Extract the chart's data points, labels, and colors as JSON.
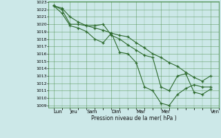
{
  "xlabel": "Pression niveau de la mer( hPa )",
  "ylim": [
    1009,
    1023
  ],
  "yticks": [
    1009,
    1010,
    1011,
    1012,
    1013,
    1014,
    1015,
    1016,
    1017,
    1018,
    1019,
    1020,
    1021,
    1022,
    1023
  ],
  "xtick_labels": [
    "Lun",
    "Jeu",
    "Sam",
    "Dim",
    "Mar",
    "Mer",
    "Ven"
  ],
  "xtick_positions": [
    0,
    1,
    2,
    3.5,
    5,
    6.5,
    9.5
  ],
  "background_color": "#cce8e8",
  "grid_color": "#4d8f4d",
  "line_color": "#2d6a2d",
  "series": [
    {
      "x": [
        0,
        0.5,
        1,
        1.5,
        2,
        2.5,
        3,
        3.5,
        4,
        4.5,
        5,
        5.5,
        6,
        6.5,
        7,
        7.5,
        8,
        8.5,
        9,
        9.5
      ],
      "y": [
        1022.5,
        1022.2,
        1021.0,
        1020.3,
        1019.8,
        1019.5,
        1019.2,
        1018.8,
        1018.5,
        1018.3,
        1017.5,
        1016.8,
        1016.0,
        1015.5,
        1014.8,
        1014.3,
        1013.5,
        1012.8,
        1012.3,
        1013.0
      ]
    },
    {
      "x": [
        0,
        0.5,
        1,
        1.5,
        2,
        2.5,
        3,
        3.5,
        4,
        4.5,
        5,
        5.5,
        6,
        6.5,
        7,
        7.5,
        8,
        8.5,
        9,
        9.5
      ],
      "y": [
        1022.5,
        1022.0,
        1020.0,
        1020.0,
        1019.8,
        1019.8,
        1020.0,
        1018.5,
        1018.0,
        1017.2,
        1016.5,
        1015.8,
        1015.5,
        1011.5,
        1011.0,
        1013.0,
        1013.3,
        1010.8,
        1010.5,
        1011.2
      ]
    },
    {
      "x": [
        0,
        0.5,
        1,
        1.5,
        2,
        2.5,
        3,
        3.5,
        4,
        4.5,
        5,
        5.5,
        6,
        6.5,
        7,
        7.5,
        8,
        8.5,
        9,
        9.5
      ],
      "y": [
        1022.5,
        1021.5,
        1019.8,
        1019.5,
        1019.0,
        1018.0,
        1017.5,
        1018.8,
        1016.2,
        1016.0,
        1014.8,
        1011.5,
        1011.0,
        1009.3,
        1009.0,
        1010.5,
        1011.3,
        1011.8,
        1011.5,
        1011.5
      ]
    }
  ],
  "figsize": [
    3.2,
    2.0
  ],
  "dpi": 100
}
